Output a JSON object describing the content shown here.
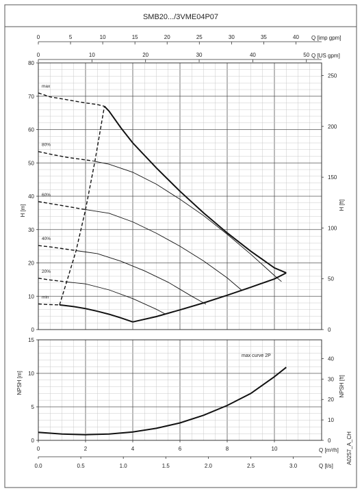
{
  "title": "SMB20.../3VME04P07",
  "top_axes": [
    {
      "label": "Q [imp gpm]",
      "ticks": [
        0,
        5,
        10,
        15,
        20,
        25,
        30,
        35,
        40
      ]
    },
    {
      "label": "Q [US gpm]",
      "ticks": [
        0,
        10,
        20,
        30,
        40,
        50
      ]
    }
  ],
  "code": "A0257_A_CH",
  "chart_data": [
    {
      "type": "line",
      "title": "",
      "xlabel": "Q [m³/h]",
      "ylabel": "H [m]",
      "y2label": "H [ft]",
      "xlim": [
        0,
        12
      ],
      "ylim": [
        0,
        80
      ],
      "y2lim": [
        0,
        262.5
      ],
      "y_ticks": [
        0,
        10,
        20,
        30,
        40,
        50,
        60,
        70,
        80
      ],
      "y2_ticks": [
        0,
        50,
        100,
        150,
        200,
        250
      ],
      "grid": true,
      "series": [
        {
          "name": "max",
          "style": "dashed",
          "x": [
            0,
            0.5,
            1,
            1.5,
            2,
            2.5,
            2.8
          ],
          "y": [
            71,
            69.8,
            69.2,
            68.6,
            68,
            67.5,
            67
          ]
        },
        {
          "name": "",
          "style": "thick",
          "x": [
            2.8,
            3.0,
            3.2,
            3.5,
            4,
            5,
            6,
            7,
            8,
            9,
            10,
            10.5
          ],
          "y": [
            67,
            65.5,
            63.5,
            60.5,
            56,
            48.5,
            41.5,
            35,
            29,
            23.5,
            18.5,
            17
          ]
        },
        {
          "name": "80%",
          "style": "dashed",
          "x": [
            0,
            0.6,
            1.2,
            1.8,
            2.3
          ],
          "y": [
            53.4,
            52.5,
            51.7,
            51.1,
            50.6
          ]
        },
        {
          "name": "",
          "style": "solid",
          "x": [
            2.3,
            3,
            4,
            5,
            6,
            7,
            8,
            9,
            10,
            10.3
          ],
          "y": [
            50.6,
            49.6,
            47.2,
            43.6,
            39.1,
            34.2,
            28.6,
            22.6,
            16.2,
            14.4
          ]
        },
        {
          "name": "60%",
          "style": "dashed",
          "x": [
            0,
            0.5,
            1,
            1.5,
            2.0
          ],
          "y": [
            38.4,
            37.8,
            37.2,
            36.6,
            36.0
          ]
        },
        {
          "name": "",
          "style": "solid",
          "x": [
            2.0,
            3,
            4,
            5,
            6,
            7,
            8,
            8.6
          ],
          "y": [
            36.0,
            34.9,
            32.3,
            28.9,
            25.0,
            20.6,
            15.5,
            11.9
          ]
        },
        {
          "name": "40%",
          "style": "dashed",
          "x": [
            0,
            0.5,
            1,
            1.6
          ],
          "y": [
            25.2,
            24.8,
            24.3,
            23.7
          ]
        },
        {
          "name": "",
          "style": "solid",
          "x": [
            1.6,
            2.5,
            3.5,
            4.5,
            5.5,
            6.5,
            7.1
          ],
          "y": [
            23.7,
            22.8,
            20.5,
            17.6,
            14.2,
            10.0,
            7.6
          ]
        },
        {
          "name": "20%",
          "style": "dashed",
          "x": [
            0,
            0.5,
            1.2
          ],
          "y": [
            15.4,
            14.9,
            14.3
          ]
        },
        {
          "name": "",
          "style": "solid",
          "x": [
            1.2,
            2,
            3,
            4,
            5,
            5.4
          ],
          "y": [
            14.3,
            13.7,
            11.9,
            9.3,
            6.1,
            4.6
          ]
        },
        {
          "name": "min",
          "style": "dashed",
          "x": [
            0,
            0.4,
            0.9
          ],
          "y": [
            7.7,
            7.5,
            7.4
          ]
        },
        {
          "name": "",
          "style": "thick",
          "x": [
            0.9,
            1.5,
            2,
            2.5,
            3,
            3.5,
            4.0
          ],
          "y": [
            7.4,
            6.9,
            6.3,
            5.5,
            4.6,
            3.5,
            2.3
          ]
        },
        {
          "name": "",
          "style": "thick",
          "x": [
            4.0,
            5,
            6,
            7,
            8,
            9,
            10,
            10.5
          ],
          "y": [
            2.3,
            3.9,
            5.9,
            8.0,
            10.3,
            12.7,
            15.2,
            17.0
          ]
        },
        {
          "name": "",
          "style": "dashed",
          "x": [
            0.9,
            1.2,
            1.6,
            2.0,
            2.4,
            2.8
          ],
          "y": [
            7.4,
            14.3,
            23.7,
            36.0,
            50.6,
            67.0
          ]
        }
      ]
    },
    {
      "type": "line",
      "title": "",
      "xlabel": "Q [m³/h]",
      "x2label": "Q [l/s]",
      "ylabel": "NPSH [m]",
      "y2label": "NPSH [ft]",
      "xlim": [
        0,
        12
      ],
      "x_ticks": [
        0,
        2,
        4,
        6,
        8,
        10
      ],
      "x2_ticks": [
        0.0,
        0.5,
        1.0,
        1.5,
        2.0,
        2.5,
        3.0
      ],
      "ylim": [
        0,
        15
      ],
      "y_ticks": [
        0,
        5,
        10,
        15
      ],
      "y2lim": [
        0,
        49.2
      ],
      "y2_ticks": [
        0,
        10,
        20,
        30,
        40
      ],
      "grid": true,
      "annotations": [
        "max curve 2P"
      ],
      "series": [
        {
          "name": "max curve 2P",
          "style": "thick",
          "x": [
            0,
            1,
            2,
            3,
            4,
            5,
            6,
            7,
            8,
            9,
            10,
            10.5
          ],
          "y": [
            1.2,
            0.95,
            0.85,
            0.95,
            1.25,
            1.8,
            2.6,
            3.75,
            5.2,
            7.0,
            9.5,
            10.9
          ]
        }
      ]
    }
  ]
}
